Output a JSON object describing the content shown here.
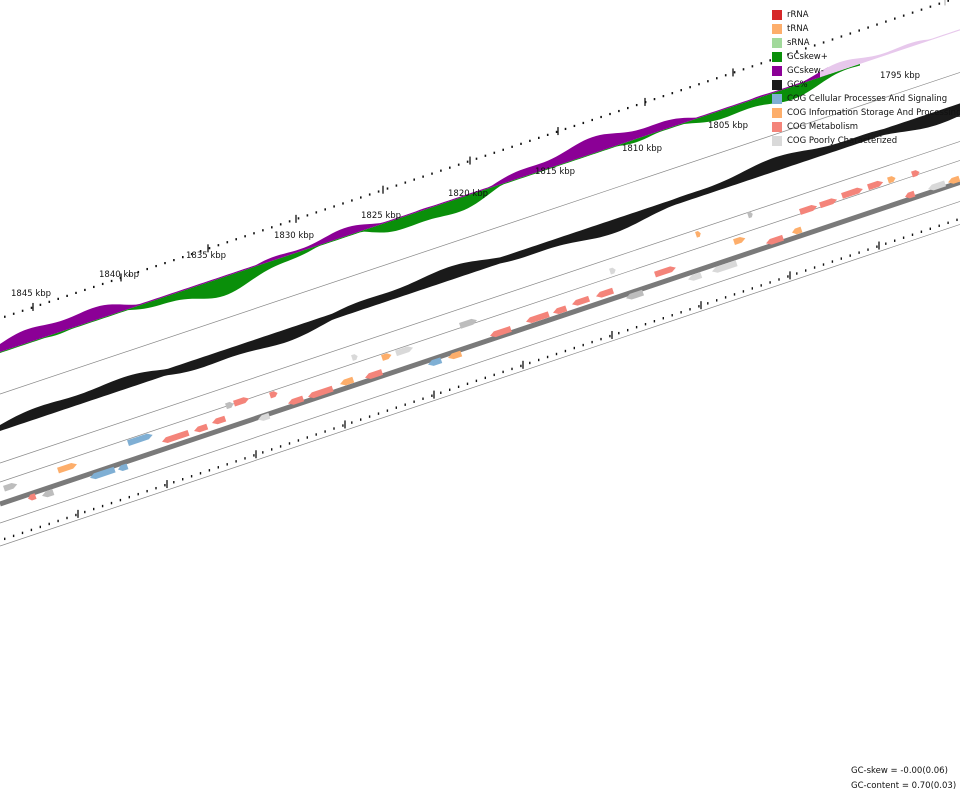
{
  "legend": [
    {
      "label": "rRNA",
      "color": "#d62728",
      "icon": "square"
    },
    {
      "label": "tRNA",
      "color": "#fdae6b",
      "icon": "square"
    },
    {
      "label": "sRNA",
      "color": "#a1d99b",
      "icon": "square"
    },
    {
      "label": "GCskew+",
      "color": "#0a8f0a",
      "icon": "square"
    },
    {
      "label": "GCskew-",
      "color": "#8b0096",
      "icon": "square"
    },
    {
      "label": "GC%",
      "color": "#1a1a1a",
      "icon": "square"
    },
    {
      "label": "COG Cellular Processes And Signaling",
      "color": "#7fafd4",
      "icon": "square"
    },
    {
      "label": "COG Information Storage And Processing",
      "color": "#fdae6b",
      "icon": "square"
    },
    {
      "label": "COG Metabolism",
      "color": "#f4847a",
      "icon": "square"
    },
    {
      "label": "COG Poorly Characterized",
      "color": "#d9d9d9",
      "icon": "square"
    }
  ],
  "ticks": [
    "1795 kbp",
    "1805 kbp",
    "1810 kbp",
    "1815 kbp",
    "1820 kbp",
    "1825 kbp",
    "1830 kbp",
    "1835 kbp",
    "1840 kbp",
    "1845 kbp"
  ],
  "stats": {
    "gc_skew": "GC-skew = -0.00(0.06)",
    "gc_content": "GC-content = 0.70(0.03)"
  }
}
